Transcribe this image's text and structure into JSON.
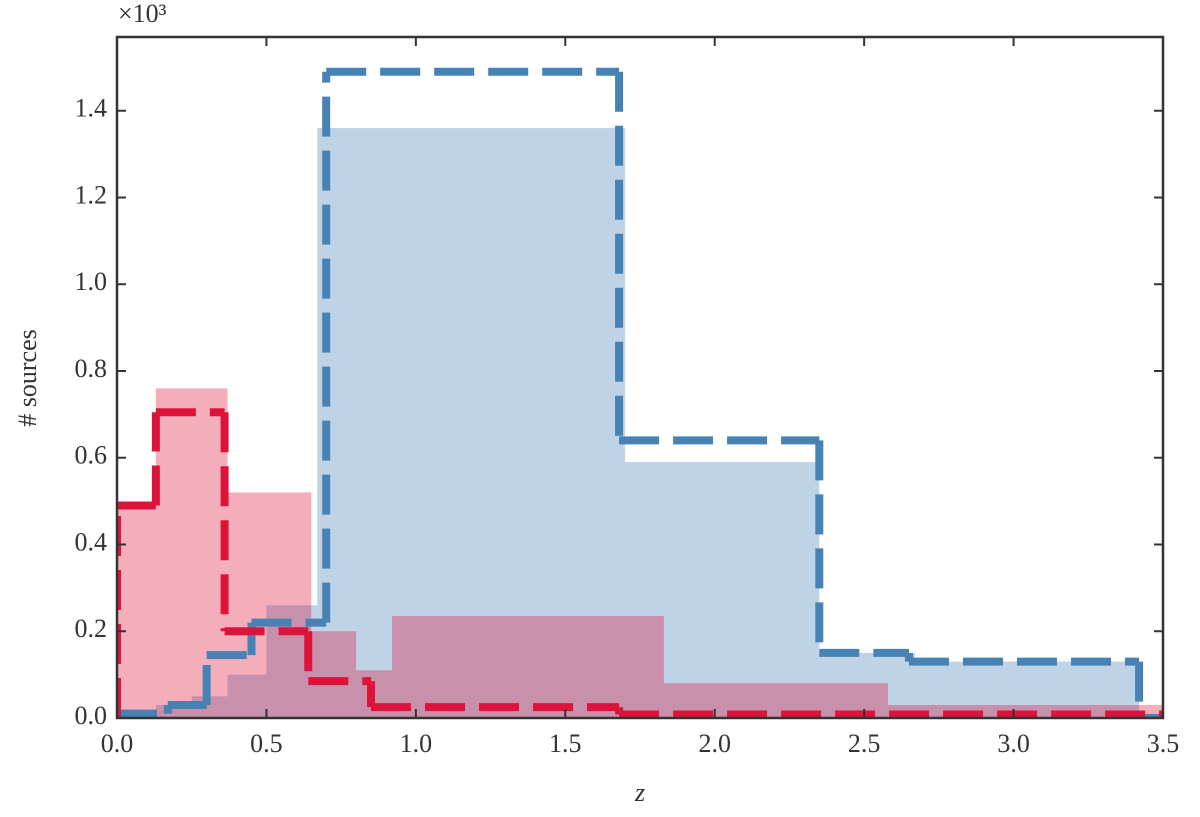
{
  "chart_data": {
    "type": "histogram",
    "xlabel": "z",
    "ylabel": "# sources",
    "multiplier": "×10³",
    "xlim": [
      0,
      3.5
    ],
    "ylim": [
      0,
      1.57
    ],
    "xticks": [
      {
        "value": 0,
        "label": "0.0"
      },
      0.5,
      {
        "value": 1,
        "label": "1.0"
      },
      1.5,
      {
        "value": 2,
        "label": "2.0"
      },
      2.5,
      {
        "value": 3,
        "label": "3.0"
      },
      3.5
    ],
    "yticks": [
      {
        "value": 0,
        "label": "0.0"
      },
      0.2,
      0.4,
      0.6,
      0.8,
      {
        "value": 1,
        "label": "1.0"
      },
      1.2,
      1.4
    ],
    "series": [
      {
        "color": "#4682b4",
        "histtype": "stepfilled",
        "bins": [
          0.0,
          0.13,
          0.25,
          0.37,
          0.5,
          0.67,
          1.7,
          2.35,
          2.67,
          3.42
        ],
        "values": [
          0.01,
          0.03,
          0.05,
          0.1,
          0.26,
          1.36,
          0.59,
          0.15,
          0.13
        ]
      },
      {
        "color": "#dc143c",
        "histtype": "stepfilled",
        "bins": [
          0.0,
          0.13,
          0.37,
          0.65,
          0.8,
          0.92,
          1.83,
          2.58,
          3.5
        ],
        "values": [
          0.49,
          0.76,
          0.52,
          0.2,
          0.11,
          0.235,
          0.08,
          0.03
        ]
      },
      {
        "color": "#4682b4",
        "histtype": "step",
        "bins": [
          0.0,
          0.17,
          0.3,
          0.45,
          0.7,
          1.68,
          2.35,
          2.65,
          3.42,
          3.5
        ],
        "values": [
          0.01,
          0.03,
          0.145,
          0.22,
          1.49,
          0.64,
          0.15,
          0.13,
          0.0
        ]
      },
      {
        "color": "#dc143c",
        "histtype": "step",
        "bins": [
          0.0,
          0.13,
          0.36,
          0.64,
          0.85,
          1.68,
          3.5
        ],
        "values": [
          0.49,
          0.705,
          0.2,
          0.085,
          0.025,
          0.008
        ]
      }
    ]
  }
}
